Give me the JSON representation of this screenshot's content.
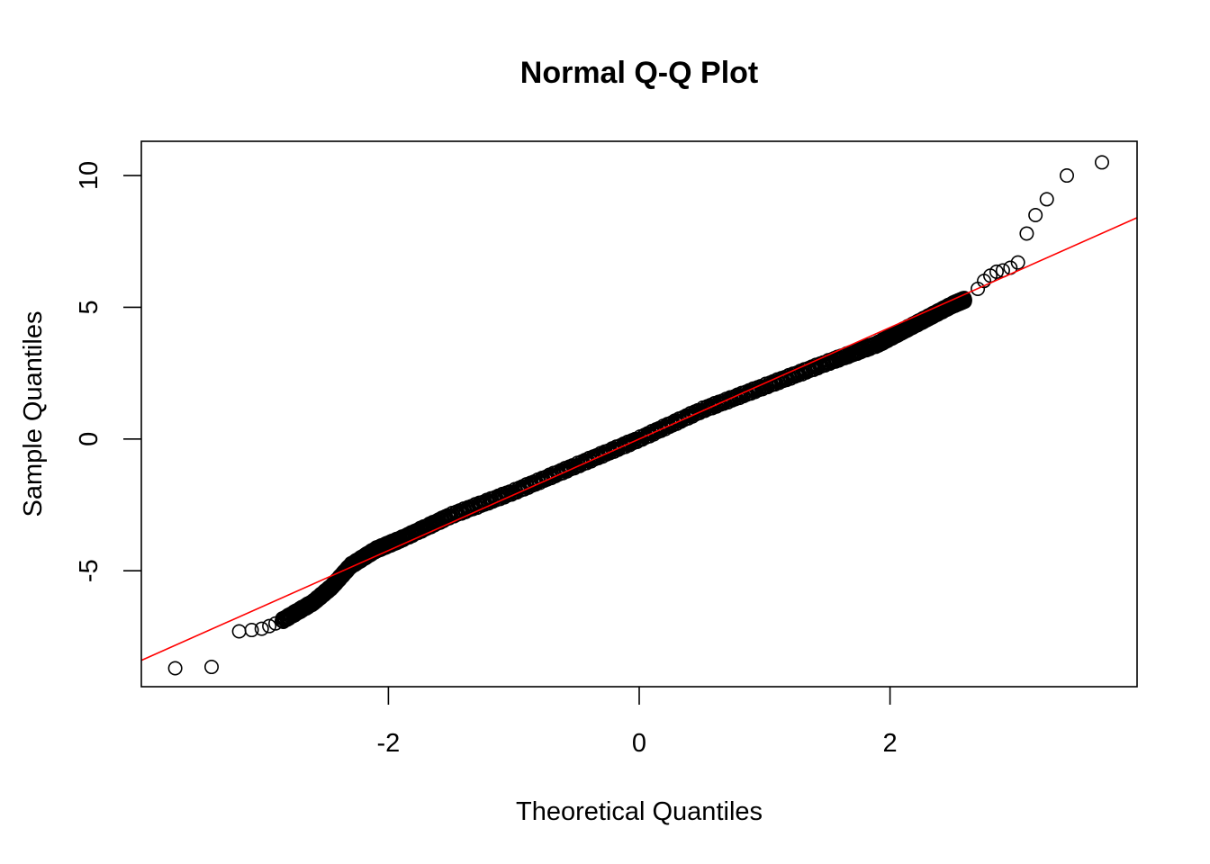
{
  "chart_data": {
    "type": "scatter",
    "title": "Normal Q-Q Plot",
    "xlabel": "Theoretical Quantiles",
    "ylabel": "Sample Quantiles",
    "xticks": [
      -2,
      0,
      2
    ],
    "yticks": [
      -5,
      0,
      5,
      10
    ],
    "xlim": [
      -3.97,
      3.97
    ],
    "ylim": [
      -9.4,
      11.3
    ],
    "grid": false,
    "legend": null,
    "reference_line": {
      "color": "#ff0000",
      "x": [
        -3.97,
        3.97
      ],
      "y": [
        -8.4,
        8.4
      ]
    },
    "point_color": "#000000",
    "point_style": "open-circle",
    "body_path": {
      "x": [
        -2.85,
        -2.6,
        -2.45,
        -2.3,
        -2.1,
        -1.9,
        -1.5,
        -1.0,
        -0.5,
        0.0,
        0.5,
        1.0,
        1.5,
        1.9,
        2.1,
        2.3,
        2.5,
        2.6
      ],
      "y": [
        -6.9,
        -6.2,
        -5.6,
        -4.8,
        -4.2,
        -3.8,
        -2.9,
        -2.0,
        -1.0,
        0.0,
        1.1,
        2.0,
        2.9,
        3.6,
        4.1,
        4.6,
        5.1,
        5.3
      ]
    },
    "tail_points": {
      "x": [
        -3.7,
        -3.41,
        -3.19,
        -3.09,
        -3.01,
        -2.95,
        -2.9,
        2.7,
        2.75,
        2.8,
        2.85,
        2.9,
        2.96,
        3.02,
        3.09,
        3.16,
        3.25,
        3.41,
        3.69
      ],
      "y": [
        -8.7,
        -8.65,
        -7.3,
        -7.25,
        -7.2,
        -7.1,
        -7.0,
        5.7,
        6.0,
        6.2,
        6.35,
        6.4,
        6.5,
        6.7,
        7.8,
        8.5,
        9.1,
        10.0,
        10.5
      ]
    }
  }
}
